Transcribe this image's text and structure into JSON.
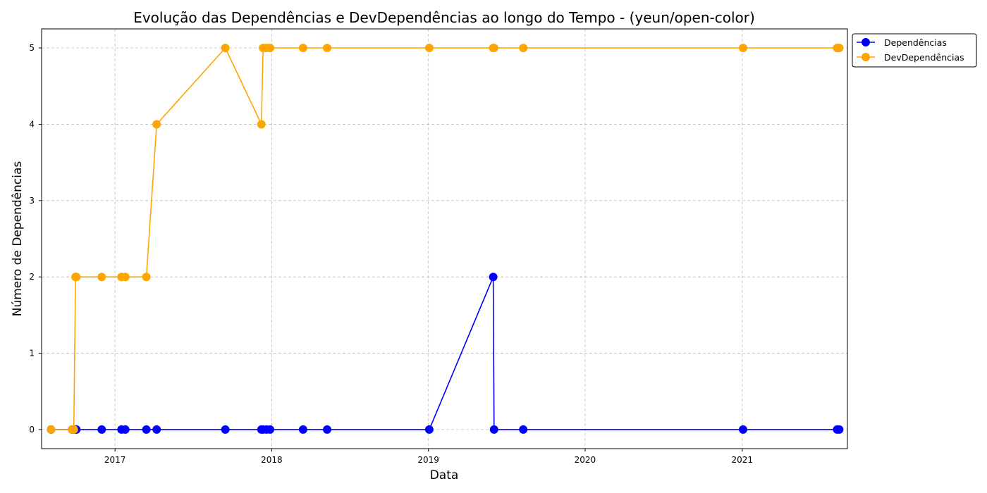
{
  "chart_data": {
    "type": "line",
    "title": "Evolução das Dependências e DevDependências ao longo do Tempo - (yeun/open-color)",
    "xlabel": "Data",
    "ylabel": "Número de Dependências",
    "x_ticks": [
      "2017",
      "2018",
      "2019",
      "2020",
      "2021"
    ],
    "y_ticks": [
      "0",
      "1",
      "2",
      "3",
      "4",
      "5"
    ],
    "xlim": [
      "2016-07-14",
      "2021-09-03"
    ],
    "ylim": [
      -0.25,
      5.25
    ],
    "grid": true,
    "legend_position": "outside-top-right",
    "x": [
      "2016-08-05",
      "2016-09-23",
      "2016-09-27",
      "2016-10-01",
      "2016-10-03",
      "2016-12-01",
      "2017-01-16",
      "2017-01-25",
      "2017-03-15",
      "2017-04-08",
      "2017-09-15",
      "2017-12-08",
      "2017-12-12",
      "2017-12-20",
      "2017-12-28",
      "2018-03-15",
      "2018-05-10",
      "2019-01-03",
      "2019-06-01",
      "2019-06-03",
      "2019-08-10",
      "2021-01-03",
      "2021-08-10",
      "2021-08-15"
    ],
    "series": [
      {
        "name": "Dependências",
        "color": "#0000ff",
        "values": [
          0,
          0,
          0,
          0,
          0,
          0,
          0,
          0,
          0,
          0,
          0,
          0,
          0,
          0,
          0,
          0,
          0,
          0,
          2,
          0,
          0,
          0,
          0,
          0
        ]
      },
      {
        "name": "DevDependências",
        "color": "#ffa500",
        "values": [
          0,
          0,
          0,
          2,
          2,
          2,
          2,
          2,
          2,
          4,
          5,
          4,
          5,
          5,
          5,
          5,
          5,
          5,
          5,
          5,
          5,
          5,
          5,
          5
        ]
      }
    ]
  }
}
